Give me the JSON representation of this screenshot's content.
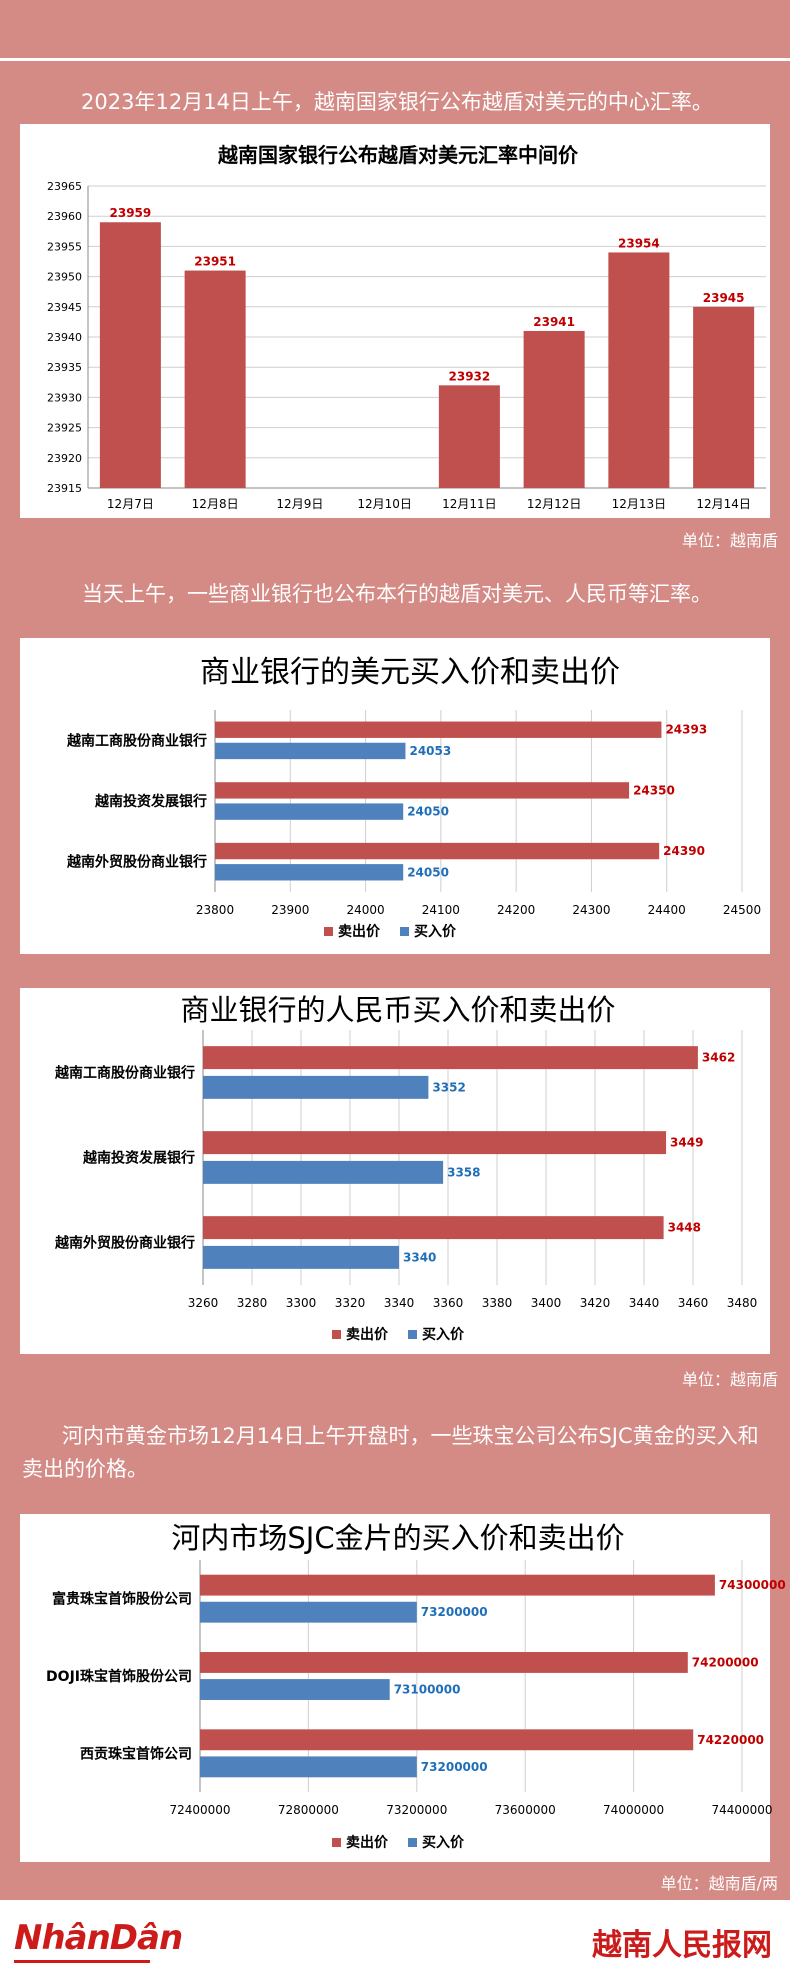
{
  "intro_text": "2023年12月14日上午，越南国家银行公布越盾对美元的中心汇率。",
  "mid_text": "当天上午，一些商业银行也公布本行的越盾对美元、人民币等汇率。",
  "gold_text": "河内市黄金市场12月14日上午开盘时，一些珠宝公司公布SJC黄金的买入和卖出的价格。",
  "unit_1": "单位：越南盾",
  "unit_2": "单位：越南盾",
  "unit_3": "单位：越南盾/两",
  "footer": {
    "left_brand": "NhânDân",
    "right_brand": "越南人民报网"
  },
  "colors": {
    "sell": "#c0504d",
    "buy": "#4f81bd",
    "bg": "#d48a85"
  },
  "chart_data": [
    {
      "type": "bar",
      "title": "越南国家银行公布越盾对美元汇率中间价",
      "categories": [
        "12月7日",
        "12月8日",
        "12月9日",
        "12月10日",
        "12月11日",
        "12月12日",
        "12月13日",
        "12月14日"
      ],
      "values": [
        23959,
        23951,
        null,
        null,
        23932,
        23941,
        23954,
        23945
      ],
      "data_labels": [
        "23959",
        "23951",
        "",
        "",
        "23932",
        "23941",
        "23954",
        "23945"
      ],
      "ylim": [
        23915,
        23965
      ],
      "yticks": [
        23915,
        23920,
        23925,
        23930,
        23935,
        23940,
        23945,
        23950,
        23955,
        23960,
        23965
      ],
      "ytick_labels": [
        "23915",
        "23920",
        "23925",
        "23930",
        "23935",
        "23940",
        "23945",
        "23950",
        "23955",
        "23960",
        "23965"
      ],
      "grid": true
    },
    {
      "type": "bar",
      "orientation": "horizontal",
      "title": "商业银行的美元买入价和卖出价",
      "categories": [
        "越南工商股份商业银行",
        "越南投资发展银行",
        "越南外贸股份商业银行"
      ],
      "series": [
        {
          "name": "卖出价",
          "values": [
            24393,
            24350,
            24390
          ],
          "labels": [
            "24393",
            "24350",
            "24390"
          ]
        },
        {
          "name": "买入价",
          "values": [
            24053,
            24050,
            24050
          ],
          "labels": [
            "24053",
            "24050",
            "24050"
          ]
        }
      ],
      "xlim": [
        23800,
        24500
      ],
      "xticks": [
        23800,
        23900,
        24000,
        24100,
        24200,
        24300,
        24400,
        24500
      ],
      "xtick_labels": [
        "23800",
        "23900",
        "24000",
        "24100",
        "24200",
        "24300",
        "24400",
        "24500"
      ],
      "legend": "bottom",
      "grid": true
    },
    {
      "type": "bar",
      "orientation": "horizontal",
      "title": "商业银行的人民币买入价和卖出价",
      "categories": [
        "越南工商股份商业银行",
        "越南投资发展银行",
        "越南外贸股份商业银行"
      ],
      "series": [
        {
          "name": "卖出价",
          "values": [
            3462,
            3449,
            3448
          ],
          "labels": [
            "3462",
            "3449",
            "3448"
          ]
        },
        {
          "name": "买入价",
          "values": [
            3352,
            3358,
            3340
          ],
          "labels": [
            "3352",
            "3358",
            "3340"
          ]
        }
      ],
      "xlim": [
        3260,
        3480
      ],
      "xticks": [
        3260,
        3280,
        3300,
        3320,
        3340,
        3360,
        3380,
        3400,
        3420,
        3440,
        3460,
        3480
      ],
      "xtick_labels": [
        "3260",
        "3280",
        "3300",
        "3320",
        "3340",
        "3360",
        "3380",
        "3400",
        "3420",
        "3440",
        "3460",
        "3480"
      ],
      "legend": "bottom",
      "grid": true
    },
    {
      "type": "bar",
      "orientation": "horizontal",
      "title": "河内市场SJC金片的买入价和卖出价",
      "categories": [
        "富贵珠宝首饰股份公司",
        "DOJI珠宝首饰股份公司",
        "西贡珠宝首饰公司"
      ],
      "series": [
        {
          "name": "卖出价",
          "values": [
            74300000,
            74200000,
            74220000
          ],
          "labels": [
            "74300000",
            "74200000",
            "74220000"
          ]
        },
        {
          "name": "买入价",
          "values": [
            73200000,
            73100000,
            73200000
          ],
          "labels": [
            "73200000",
            "73100000",
            "73200000"
          ]
        }
      ],
      "xlim": [
        72400000,
        74400000
      ],
      "xticks": [
        72400000,
        72800000,
        73200000,
        73600000,
        74000000,
        74400000
      ],
      "xtick_labels": [
        "72400000",
        "72800000",
        "73200000",
        "73600000",
        "74000000",
        "74400000"
      ],
      "legend": "bottom",
      "grid": true
    }
  ]
}
